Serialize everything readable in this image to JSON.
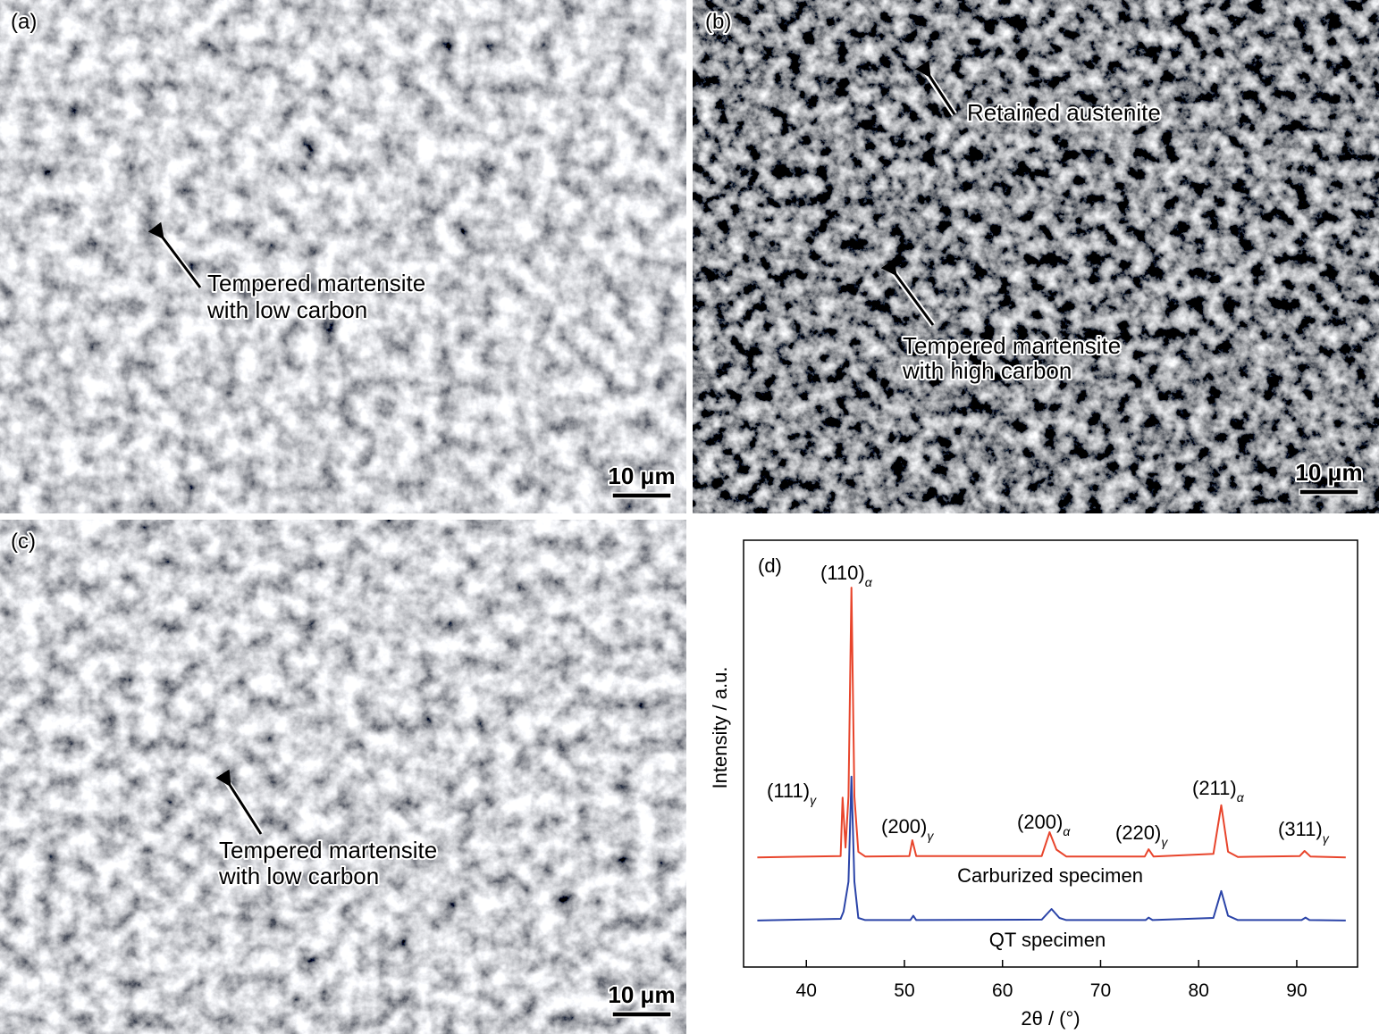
{
  "panels": [
    {
      "label": "(a)",
      "annotations": [
        {
          "lines": [
            "Tempered martensite",
            "with low carbon"
          ]
        }
      ],
      "scale_bar": "10 μm"
    },
    {
      "label": "(b)",
      "annotations": [
        {
          "lines": [
            "Retained austenite"
          ]
        },
        {
          "lines": [
            "Tempered martensite",
            "with high carbon"
          ]
        }
      ],
      "scale_bar": "10 μm"
    },
    {
      "label": "(c)",
      "annotations": [
        {
          "lines": [
            "Tempered martensite",
            "with low carbon"
          ]
        }
      ],
      "scale_bar": "10 μm"
    }
  ],
  "chart_data": {
    "type": "line",
    "panel_label": "(d)",
    "xlabel": "2θ / (°)",
    "ylabel": "Intensity / a.u.",
    "xlim": [
      33.6,
      96.2
    ],
    "ylim": [
      0,
      100
    ],
    "xticks": [
      40,
      50,
      60,
      70,
      80,
      90
    ],
    "series": [
      {
        "name": "Carburized specimen",
        "color": "#e8452c",
        "x": [
          35,
          43.5,
          43.7,
          44.0,
          44.3,
          44.6,
          44.9,
          45.3,
          46,
          50.5,
          50.8,
          51.2,
          64,
          64.8,
          65.5,
          66.5,
          74.5,
          74.9,
          75.4,
          81.5,
          82.3,
          83,
          84,
          90.3,
          90.8,
          91.4,
          95
        ],
        "values": [
          25.7,
          26,
          39.7,
          28,
          40,
          88.9,
          40,
          27,
          25.9,
          26,
          29.7,
          26,
          26,
          31.6,
          27.5,
          25.9,
          25.9,
          27.6,
          25.9,
          26.5,
          37.9,
          27,
          25.8,
          26,
          27.2,
          25.9,
          25.7
        ]
      },
      {
        "name": "QT specimen",
        "color": "#2b44a8",
        "x": [
          35,
          43.5,
          43.8,
          44.3,
          44.6,
          44.9,
          45.3,
          46,
          50.6,
          50.9,
          51.2,
          64,
          65,
          65.8,
          66.5,
          74.6,
          74.9,
          75.3,
          81.5,
          82.3,
          83,
          84,
          90.5,
          90.9,
          91.3,
          95
        ],
        "values": [
          10.9,
          11.3,
          13,
          20,
          44.6,
          20,
          11.5,
          11,
          11,
          12,
          11,
          11.1,
          13.6,
          11.5,
          11,
          11,
          11.6,
          11,
          11.5,
          17.8,
          12,
          11,
          11,
          11.6,
          11,
          10.9
        ]
      }
    ],
    "annotations": [
      {
        "text": "(110)",
        "sub": "α"
      },
      {
        "text": "(111)",
        "sub": "γ"
      },
      {
        "text": "(200)",
        "sub": "γ"
      },
      {
        "text": "(200)",
        "sub": "α"
      },
      {
        "text": "(220)",
        "sub": "γ"
      },
      {
        "text": "(211)",
        "sub": "α"
      },
      {
        "text": "(311)",
        "sub": "γ"
      }
    ]
  }
}
